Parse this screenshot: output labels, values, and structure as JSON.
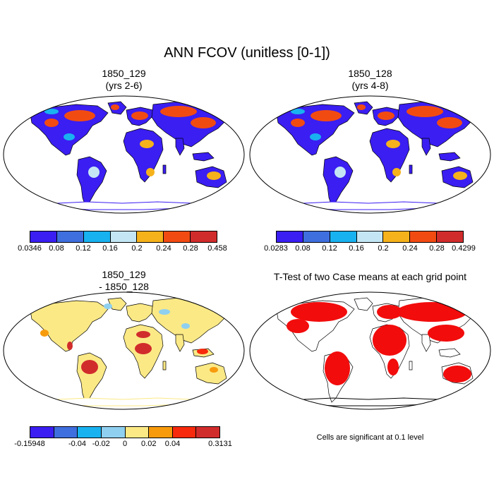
{
  "title": "ANN FCOV (unitless [0-1])",
  "panels": [
    {
      "title_line1": "1850_129",
      "title_line2": "(yrs 2-6)"
    },
    {
      "title_line1": "1850_128",
      "title_line2": "(yrs 4-8)"
    },
    {
      "title_line1": "1850_129",
      "title_line2": "- 1850_128"
    },
    {
      "title_line1": "T-Test of two Case means at each grid point",
      "title_line2": ""
    }
  ],
  "colorbars": [
    {
      "colors": [
        "#3a1ef2",
        "#3f6fde",
        "#19b2f0",
        "#c4e6f4",
        "#f6b21a",
        "#f24b12",
        "#d12c2c"
      ],
      "labels": [
        "0.0346",
        "0.08",
        "0.12",
        "0.16",
        "0.2",
        "0.24",
        "0.28",
        "0.458"
      ]
    },
    {
      "colors": [
        "#3a1ef2",
        "#3f6fde",
        "#19b2f0",
        "#c4e6f4",
        "#f6b21a",
        "#f24b12",
        "#d12c2c"
      ],
      "labels": [
        "0.0283",
        "0.08",
        "0.12",
        "0.16",
        "0.2",
        "0.24",
        "0.28",
        "0.4299"
      ]
    },
    {
      "colors": [
        "#3a1ef2",
        "#3f6fde",
        "#19b2f0",
        "#8fd0f0",
        "#fbe986",
        "#f79b0d",
        "#f72a0d",
        "#d12c2c"
      ],
      "labels": [
        "-0.15948",
        "",
        "-0.04",
        "-0.02",
        "0",
        "0.02",
        "0.04",
        "",
        "0.3131"
      ]
    }
  ],
  "significance_note": "Cells are significant at 0.1 level",
  "map_colors": {
    "panel1_land": "#3a1ef2",
    "panel2_land": "#3a1ef2",
    "panel3_land": "#fbe986",
    "panel4_significant": "#f20c0c"
  }
}
